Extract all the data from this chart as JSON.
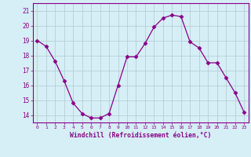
{
  "x": [
    0,
    1,
    2,
    3,
    4,
    5,
    6,
    7,
    8,
    9,
    10,
    11,
    12,
    13,
    14,
    15,
    16,
    17,
    18,
    19,
    20,
    21,
    22,
    23
  ],
  "y": [
    19.0,
    18.6,
    17.6,
    16.3,
    14.8,
    14.1,
    13.8,
    13.8,
    14.1,
    16.0,
    17.9,
    17.9,
    18.8,
    19.9,
    20.5,
    20.7,
    20.6,
    18.9,
    18.5,
    17.5,
    17.5,
    16.5,
    15.5,
    14.2
  ],
  "ylim": [
    13.5,
    21.5
  ],
  "yticks": [
    14,
    15,
    16,
    17,
    18,
    19,
    20,
    21
  ],
  "xticks": [
    0,
    1,
    2,
    3,
    4,
    5,
    6,
    7,
    8,
    9,
    10,
    11,
    12,
    13,
    14,
    15,
    16,
    17,
    18,
    19,
    20,
    21,
    22,
    23
  ],
  "xlabel": "Windchill (Refroidissement éolien,°C)",
  "line_color": "#880088",
  "marker": "D",
  "marker_size": 2.5,
  "bg_color": "#d6eef5",
  "grid_color": "#b0c8d0",
  "axis_color": "#880088"
}
